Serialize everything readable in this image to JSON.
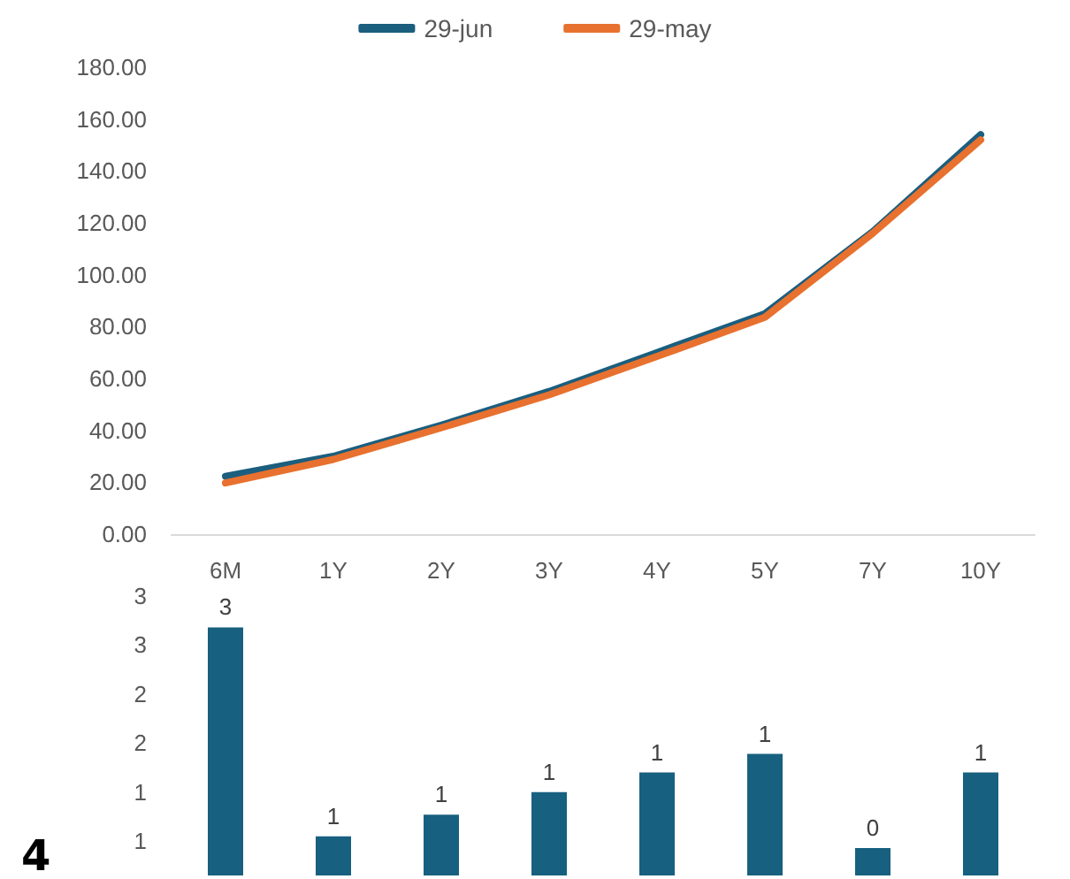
{
  "chart_data": [
    {
      "type": "line",
      "categories": [
        "6M",
        "1Y",
        "2Y",
        "3Y",
        "4Y",
        "5Y",
        "7Y",
        "10Y"
      ],
      "series": [
        {
          "name": "29-jun",
          "color": "#1b5e7e",
          "values": [
            22.3,
            30,
            42,
            55,
            70,
            85,
            116.6,
            154
          ]
        },
        {
          "name": "29-may",
          "color": "#e8712f",
          "values": [
            19.7,
            28.8,
            41,
            53.7,
            68.5,
            83.6,
            116,
            152
          ]
        }
      ],
      "ylim": [
        0,
        180
      ],
      "yticks": [
        {
          "value": 0,
          "label": "0.00"
        },
        {
          "value": 20,
          "label": "20.00"
        },
        {
          "value": 40,
          "label": "40.00"
        },
        {
          "value": 60,
          "label": "60.00"
        },
        {
          "value": 80,
          "label": "80.00"
        },
        {
          "value": 100,
          "label": "100.00"
        },
        {
          "value": 120,
          "label": "120.00"
        },
        {
          "value": 140,
          "label": "140.00"
        },
        {
          "value": 160,
          "label": "160.00"
        },
        {
          "value": 180,
          "label": "180.00"
        }
      ],
      "legend": "top",
      "grid": false,
      "marker": "none",
      "line_style": "solid"
    },
    {
      "type": "bar",
      "categories": [
        null,
        null,
        null,
        null,
        null,
        null,
        null,
        null
      ],
      "color": "#17607f",
      "values": [
        2.68,
        0.55,
        0.77,
        1.0,
        1.2,
        1.39,
        0.43,
        1.2
      ],
      "value_labels": [
        "3",
        "1",
        "1",
        "1",
        "1",
        "1",
        "0",
        "1"
      ],
      "ylim": [
        0.15,
        3
      ],
      "yticks": [
        {
          "value": 0.5,
          "label": "1"
        },
        {
          "value": 1,
          "label": "1"
        },
        {
          "value": 1.5,
          "label": "2"
        },
        {
          "value": 2,
          "label": "2"
        },
        {
          "value": 2.5,
          "label": "3"
        },
        {
          "value": 3,
          "label": "3"
        }
      ],
      "tick_labels": "y",
      "grid": false,
      "legend": false,
      "annotations": [
        "4"
      ]
    }
  ]
}
